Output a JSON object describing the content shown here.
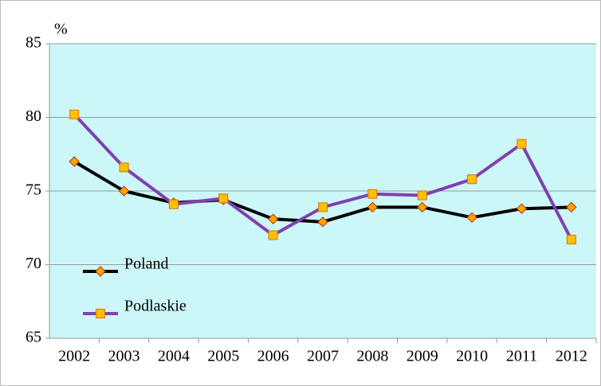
{
  "chart_data": {
    "type": "line",
    "y_label": "%",
    "categories": [
      "2002",
      "2003",
      "2004",
      "2005",
      "2006",
      "2007",
      "2008",
      "2009",
      "2010",
      "2011",
      "2012"
    ],
    "series": [
      {
        "name": "Poland",
        "color": "#000000",
        "marker": "diamond",
        "marker_color": "#ffa500",
        "values": [
          77.0,
          75.0,
          74.2,
          74.4,
          73.1,
          72.9,
          73.9,
          73.9,
          73.2,
          73.8,
          73.9
        ]
      },
      {
        "name": "Podlaskie",
        "color": "#8040b0",
        "marker": "square",
        "marker_color": "#ffc000",
        "values": [
          80.2,
          76.6,
          74.1,
          74.5,
          72.0,
          73.9,
          74.8,
          74.7,
          75.8,
          78.2,
          71.7
        ]
      }
    ],
    "ylim": [
      65,
      85
    ],
    "yticks": [
      65,
      70,
      75,
      80,
      85
    ],
    "grid": true,
    "background": "#ccf7f9",
    "legend": "lower left"
  }
}
